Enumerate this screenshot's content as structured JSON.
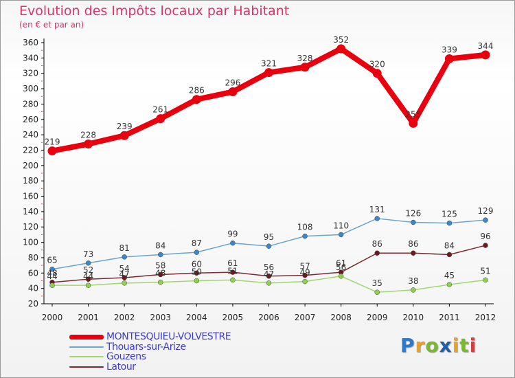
{
  "chart_data": {
    "type": "line",
    "title": "Evolution des Impôts locaux par Habitant",
    "subtitle": "(en € et par an)",
    "xlabel": "",
    "ylabel": "",
    "categories": [
      "2000",
      "2001",
      "2002",
      "2003",
      "2004",
      "2005",
      "2006",
      "2007",
      "2008",
      "2009",
      "2010",
      "2011",
      "2012"
    ],
    "ylim": [
      20,
      360
    ],
    "yticks": [
      20,
      40,
      60,
      80,
      100,
      120,
      140,
      160,
      180,
      200,
      220,
      240,
      260,
      280,
      300,
      320,
      340,
      360
    ],
    "grid": false,
    "legend_position": "bottom-left",
    "series": [
      {
        "name": "MONTESQUIEU-VOLVESTRE",
        "color": "#e8000f",
        "marker_color": "#e8000f",
        "values": [
          219,
          228,
          239,
          261,
          286,
          296,
          321,
          328,
          352,
          320,
          255,
          339,
          344
        ]
      },
      {
        "name": "Thouars-sur-Arize",
        "color": "#6aa3d0",
        "marker_color": "#3d86c8",
        "values": [
          65,
          73,
          81,
          84,
          87,
          99,
          95,
          108,
          110,
          131,
          126,
          125,
          129
        ]
      },
      {
        "name": "Gouzens",
        "color": "#9fd86a",
        "marker_color": "#8fd14f",
        "values": [
          44,
          44,
          47,
          48,
          50,
          51,
          47,
          49,
          56,
          35,
          38,
          45,
          51
        ]
      },
      {
        "name": "Latour",
        "color": "#7a2a33",
        "marker_color": "#6b1a22",
        "values": [
          48,
          52,
          54,
          58,
          60,
          61,
          56,
          57,
          61,
          86,
          86,
          84,
          96
        ]
      }
    ]
  },
  "legend": [
    {
      "label": "MONTESQUIEU-VOLVESTRE",
      "color": "#e8000f",
      "text_color": "#3b3bd6"
    },
    {
      "label": "Thouars-sur-Arize",
      "color": "#6aa3d0",
      "text_color": "#3b3bd6"
    },
    {
      "label": "Gouzens",
      "color": "#9fd86a",
      "text_color": "#3b3bd6"
    },
    {
      "label": "Latour",
      "color": "#7a2a33",
      "text_color": "#3b3bd6"
    }
  ],
  "brand": {
    "letters": [
      "P",
      "r",
      "o",
      "x",
      "i",
      "t",
      "i"
    ],
    "colors": [
      "#2f79c8",
      "#f0a020",
      "#7ab830",
      "#1f5fa8",
      "#f0a020",
      "#7ab830",
      "#d04040"
    ]
  }
}
